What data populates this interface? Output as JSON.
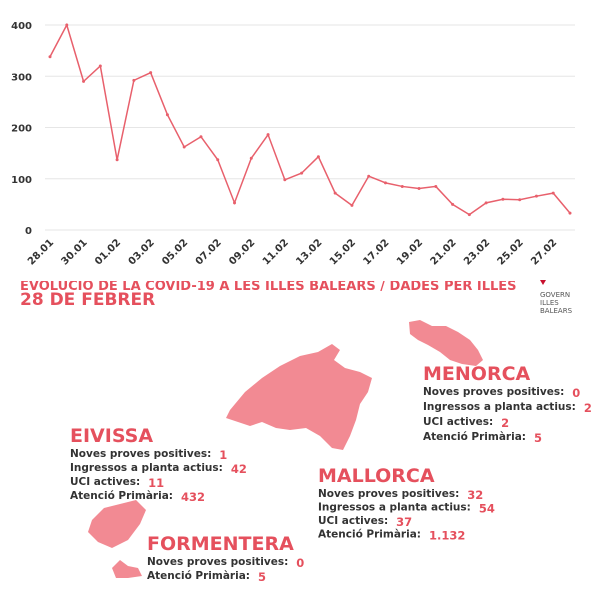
{
  "chart_data": {
    "type": "line",
    "categories": [
      "28.01",
      null,
      "30.01",
      null,
      "01.02",
      null,
      "03.02",
      null,
      "05.02",
      null,
      "07.02",
      null,
      "09.02",
      null,
      "11.02",
      null,
      "13.02",
      null,
      "15.02",
      null,
      "17.02",
      null,
      "19.02",
      null,
      "21.02",
      null,
      "23.02",
      null,
      "25.02",
      null,
      "27.02",
      null
    ],
    "values": [
      338,
      400,
      290,
      320,
      137,
      292,
      307,
      225,
      162,
      182,
      137,
      53,
      140,
      186,
      98,
      111,
      143,
      72,
      48,
      105,
      92,
      85,
      81,
      85,
      50,
      30,
      53,
      60,
      59,
      66,
      72,
      33
    ],
    "color": "#e8606c",
    "ylim": [
      0,
      400
    ],
    "yticks": [
      0,
      100,
      200,
      300,
      400
    ],
    "grid": true
  },
  "header": {
    "title": "EVOLUCIÓ DE LA COVID-19 A LES ILLES BALEARS / DADES PER ILLES",
    "date": "28 DE FEBRER",
    "logo": [
      "GOVERN",
      "ILLES",
      "BALEARS"
    ]
  },
  "islands": [
    {
      "name": "MENORCA",
      "stats": [
        {
          "label": "Noves proves positives:",
          "value": "0"
        },
        {
          "label": "Ingressos a planta actius:",
          "value": "2"
        },
        {
          "label": "UCI actives:",
          "value": "2"
        },
        {
          "label": "Atenció Primària:",
          "value": "5"
        }
      ]
    },
    {
      "name": "EIVISSA",
      "stats": [
        {
          "label": "Noves proves positives:",
          "value": "1"
        },
        {
          "label": "Ingressos a planta actius:",
          "value": "42"
        },
        {
          "label": "UCI actives:",
          "value": "11"
        },
        {
          "label": "Atenció Primària:",
          "value": "432"
        }
      ]
    },
    {
      "name": "MALLORCA",
      "stats": [
        {
          "label": "Noves proves positives:",
          "value": "32"
        },
        {
          "label": "Ingressos a planta actius:",
          "value": "54"
        },
        {
          "label": "UCI actives:",
          "value": "37"
        },
        {
          "label": "Atenció Primària:",
          "value": "1.132"
        }
      ]
    },
    {
      "name": "FORMENTERA",
      "stats": [
        {
          "label": "Noves proves positives:",
          "value": "0"
        },
        {
          "label": "Atenció Primària:",
          "value": "5"
        }
      ]
    }
  ]
}
